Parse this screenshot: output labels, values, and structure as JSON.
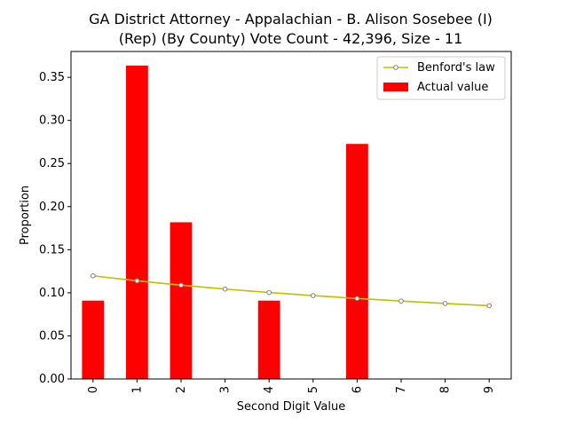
{
  "chart_data": {
    "type": "bar",
    "title_lines": [
      "GA District Attorney - Appalachian - B. Alison Sosebee (I)",
      "(Rep) (By County) Vote Count - 42,396, Size - 11"
    ],
    "xlabel": "Second Digit Value",
    "ylabel": "Proportion",
    "categories": [
      "0",
      "1",
      "2",
      "3",
      "4",
      "5",
      "6",
      "7",
      "8",
      "9"
    ],
    "ylim": [
      0,
      0.38
    ],
    "yticks": [
      "0.00",
      "0.05",
      "0.10",
      "0.15",
      "0.20",
      "0.25",
      "0.30",
      "0.35"
    ],
    "legend_position": "top-right",
    "series": [
      {
        "name": "Benford's law",
        "kind": "line",
        "color": "#bfbf00",
        "values": [
          0.1197,
          0.1139,
          0.1088,
          0.1043,
          0.1003,
          0.0967,
          0.0934,
          0.0904,
          0.0876,
          0.085
        ]
      },
      {
        "name": "Actual value",
        "kind": "bar",
        "color": "#ff0000",
        "values": [
          0.0909,
          0.3636,
          0.1818,
          0.0,
          0.0909,
          0.0,
          0.2727,
          0.0,
          0.0,
          0.0
        ]
      }
    ]
  }
}
